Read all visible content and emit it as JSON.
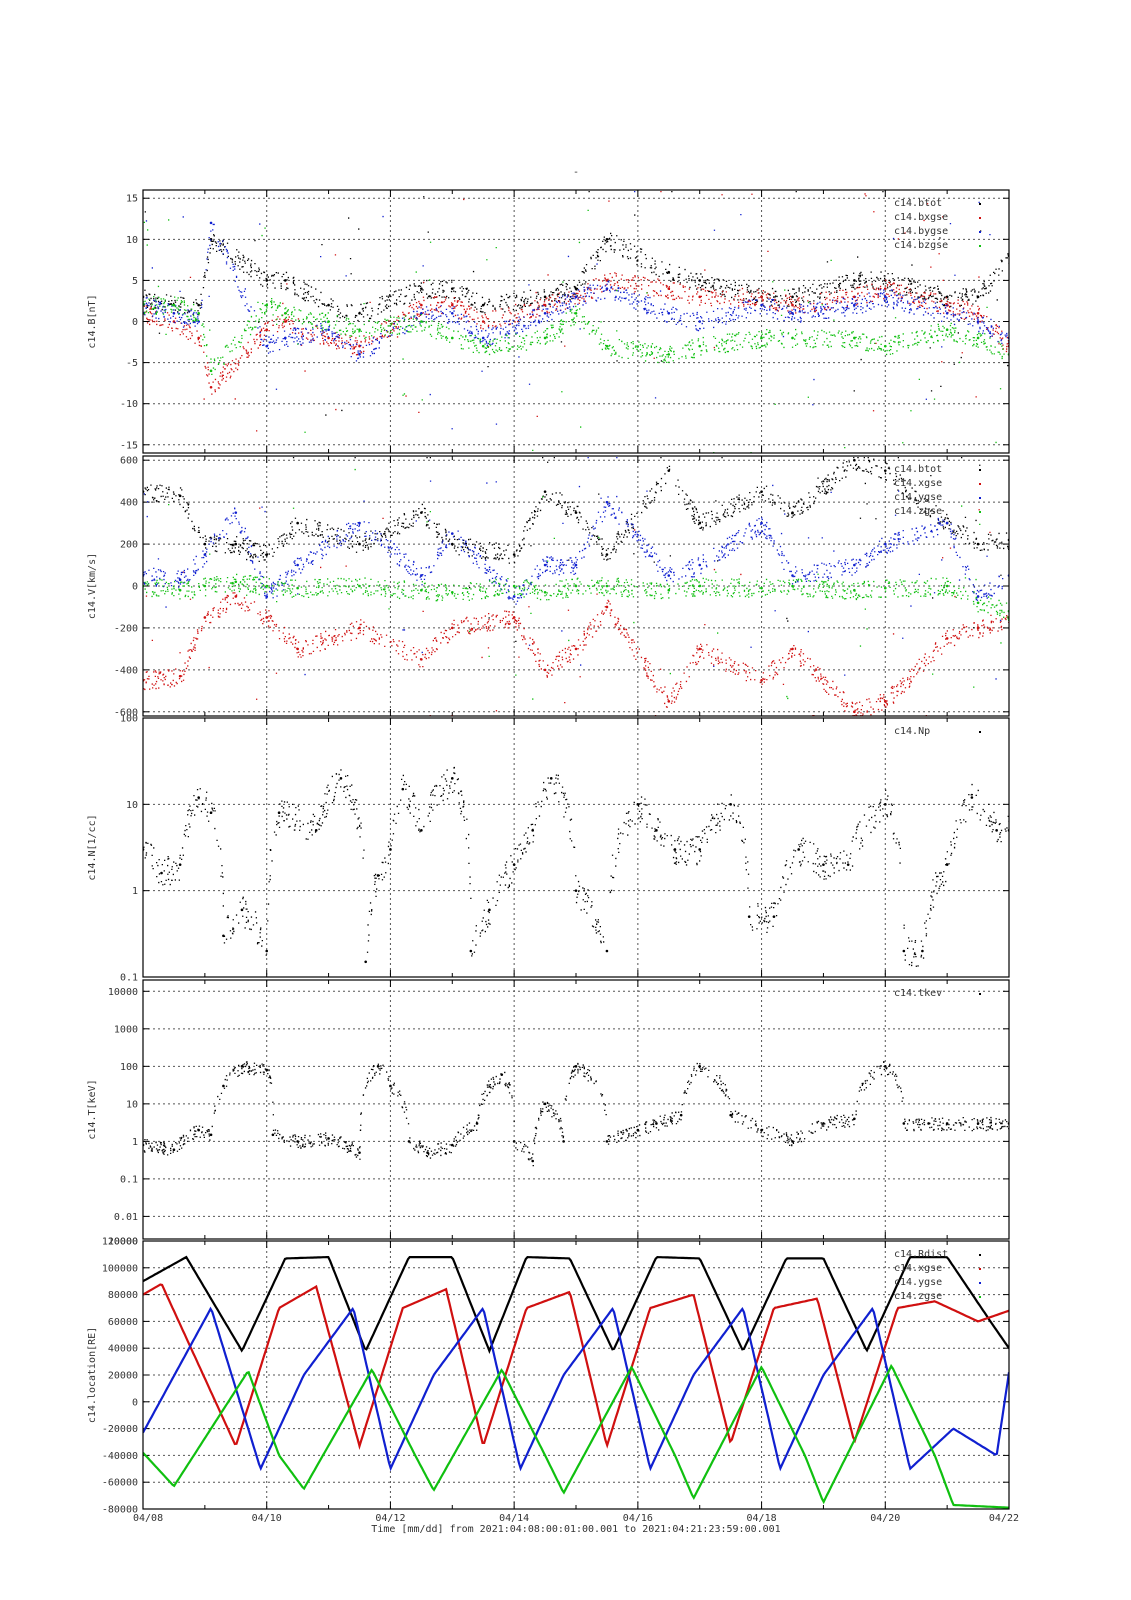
{
  "figure": {
    "title_mark": "-",
    "xaxis": {
      "ticks": [
        "04/08",
        "04/10",
        "04/12",
        "04/14",
        "04/16",
        "04/18",
        "04/20",
        "04/22"
      ],
      "label": "Time [mm/dd]  from 2021:04:08:00:01:00.001  to  2021:04:21:23:59:00.001",
      "range_days": [
        0,
        14
      ]
    }
  },
  "colors": {
    "black": "#000000",
    "red": "#d01010",
    "blue": "#1020d0",
    "green": "#10c010",
    "grid": "#555555"
  },
  "chart_data": [
    {
      "type": "scatter",
      "ylabel": "c14.B[nT]",
      "ylim": [
        -16,
        16
      ],
      "log": false,
      "yticks": [
        15,
        10,
        5,
        0,
        -5,
        -10,
        -15
      ],
      "yticklabels": [
        "15",
        "10",
        "5",
        "0",
        "-5",
        "-10",
        "-15"
      ],
      "series": [
        {
          "name": "c14.btot",
          "color": "black",
          "x": [
            0,
            0.5,
            0.9,
            1.1,
            2.0,
            2.3,
            3.0,
            3.5,
            4.5,
            5.0,
            5.5,
            6.5,
            7.0,
            7.5,
            8.5,
            9.0,
            10.0,
            10.5,
            11.5,
            12.0,
            13.0,
            13.5,
            14.0
          ],
          "y": [
            3,
            2,
            2,
            10,
            5,
            5,
            2,
            1,
            4,
            4,
            2,
            3,
            4,
            10,
            6,
            5,
            3,
            3,
            5,
            5,
            3,
            3,
            8
          ]
        },
        {
          "name": "c14.bxgse",
          "color": "red",
          "x": [
            0,
            0.5,
            0.9,
            1.1,
            2.0,
            2.3,
            3.0,
            3.5,
            4.5,
            5.0,
            5.5,
            6.5,
            7.0,
            7.5,
            8.5,
            9.0,
            10.0,
            10.5,
            11.5,
            12.0,
            13.0,
            13.5,
            14.0
          ],
          "y": [
            1,
            0,
            -2,
            -8,
            -1,
            0,
            -2,
            -3,
            2,
            2,
            0,
            2,
            3,
            5,
            4,
            3,
            3,
            2,
            3,
            4,
            2,
            1,
            -3
          ]
        },
        {
          "name": "c14.bygse",
          "color": "blue",
          "x": [
            0,
            0.5,
            0.9,
            1.1,
            2.0,
            2.3,
            3.0,
            3.5,
            4.5,
            5.0,
            5.5,
            6.5,
            7.0,
            7.5,
            8.5,
            9.0,
            10.0,
            10.5,
            11.5,
            12.0,
            13.0,
            13.5,
            14.0
          ],
          "y": [
            2,
            1,
            0,
            12,
            -3,
            -2,
            -1,
            -4,
            1,
            1,
            -2,
            1,
            3,
            4,
            1,
            0,
            2,
            1,
            2,
            3,
            1,
            0,
            -2
          ]
        },
        {
          "name": "c14.bzgse",
          "color": "green",
          "x": [
            0,
            0.5,
            0.9,
            1.1,
            2.0,
            2.3,
            3.0,
            3.5,
            4.5,
            5.0,
            5.5,
            6.5,
            7.0,
            7.5,
            8.5,
            9.0,
            10.0,
            10.5,
            11.5,
            12.0,
            13.0,
            13.5,
            14.0
          ],
          "y": [
            2,
            2,
            1,
            -6,
            2,
            1,
            0,
            -1,
            0,
            -2,
            -3,
            -2,
            1,
            -3,
            -4,
            -3,
            -2,
            -2,
            -2,
            -3,
            -1,
            -2,
            -4
          ]
        }
      ]
    },
    {
      "type": "scatter",
      "ylabel": "c14.V[km/s]",
      "ylim": [
        -620,
        620
      ],
      "log": false,
      "yticks": [
        600,
        400,
        200,
        0,
        -200,
        -400,
        -600
      ],
      "yticklabels": [
        "600",
        "400",
        "200",
        "0",
        "-200",
        "-400",
        "-600"
      ],
      "series": [
        {
          "name": "c14.btot",
          "color": "black",
          "x": [
            0,
            0.6,
            1.0,
            1.5,
            2.0,
            2.5,
            3.5,
            4.5,
            5.0,
            6.0,
            6.5,
            7.0,
            7.5,
            8.5,
            9.0,
            10.0,
            10.5,
            11.5,
            12.0,
            13.0,
            13.5,
            14.0
          ],
          "y": [
            450,
            430,
            200,
            200,
            150,
            300,
            200,
            350,
            200,
            150,
            450,
            350,
            150,
            550,
            300,
            450,
            350,
            600,
            550,
            300,
            200,
            220
          ]
        },
        {
          "name": "c14.xgse",
          "color": "red",
          "x": [
            0,
            0.6,
            1.0,
            1.5,
            2.0,
            2.5,
            3.5,
            4.5,
            5.0,
            6.0,
            6.5,
            7.0,
            7.5,
            8.5,
            9.0,
            10.0,
            10.5,
            11.5,
            12.0,
            13.0,
            13.5,
            14.0
          ],
          "y": [
            -450,
            -430,
            -150,
            -50,
            -150,
            -300,
            -200,
            -350,
            -200,
            -150,
            -400,
            -300,
            -100,
            -550,
            -300,
            -450,
            -300,
            -600,
            -550,
            -250,
            -200,
            -150
          ]
        },
        {
          "name": "c14.ygse",
          "color": "blue",
          "x": [
            0,
            0.6,
            1.0,
            1.5,
            2.0,
            2.5,
            3.5,
            4.5,
            5.0,
            6.0,
            6.5,
            7.0,
            7.5,
            8.5,
            9.0,
            10.0,
            10.5,
            11.5,
            12.0,
            13.0,
            13.5,
            14.0
          ],
          "y": [
            50,
            30,
            150,
            350,
            -50,
            100,
            300,
            50,
            250,
            -50,
            100,
            100,
            400,
            50,
            100,
            300,
            50,
            100,
            200,
            300,
            -50,
            50
          ]
        },
        {
          "name": "c14.zgse",
          "color": "green",
          "x": [
            0,
            0.6,
            1.0,
            1.5,
            2.0,
            2.5,
            3.5,
            4.5,
            5.0,
            6.0,
            6.5,
            7.0,
            7.5,
            8.5,
            9.0,
            10.0,
            10.5,
            11.5,
            12.0,
            13.0,
            13.5,
            14.0
          ],
          "y": [
            0,
            -20,
            0,
            20,
            0,
            -10,
            0,
            -20,
            -30,
            0,
            -30,
            0,
            0,
            -20,
            0,
            -10,
            0,
            -20,
            -10,
            0,
            -80,
            -120
          ]
        }
      ]
    },
    {
      "type": "scatter",
      "ylabel": "c14.N[1/cc]",
      "ylim": [
        0.1,
        100
      ],
      "log": true,
      "yticks": [
        100,
        10,
        1,
        0.1
      ],
      "yticklabels": [
        "100",
        "10",
        "1",
        "0.1"
      ],
      "series": [
        {
          "name": "c14.Np",
          "color": "black",
          "x": [
            0,
            0.3,
            0.6,
            0.9,
            1.1,
            1.3,
            1.6,
            2.0,
            2.2,
            2.8,
            3.2,
            3.6,
            3.8,
            4.0,
            4.2,
            4.5,
            5.0,
            5.3,
            5.6,
            6.0,
            6.3,
            6.6,
            7.0,
            7.5,
            8.0,
            8.3,
            8.6,
            9.0,
            9.5,
            9.8,
            10.2,
            10.6,
            11.0,
            11.4,
            12.0,
            12.3,
            12.6,
            13.0,
            13.4,
            13.8,
            14.0
          ],
          "y": [
            3,
            1.6,
            2,
            12,
            8,
            0.3,
            0.6,
            0.2,
            8,
            5,
            20,
            0.15,
            1.5,
            3,
            15,
            5,
            20,
            0.2,
            0.6,
            2,
            5,
            20,
            1,
            0.2,
            10,
            5,
            3,
            3,
            10,
            0.5,
            0.5,
            3,
            2,
            2,
            10,
            0.2,
            0.2,
            2,
            12,
            5,
            5
          ]
        }
      ]
    },
    {
      "type": "scatter",
      "ylabel": "c14.T[keV]",
      "ylim": [
        0.0025,
        20000
      ],
      "log": true,
      "yticks": [
        10000,
        1000,
        100,
        10,
        1,
        0.1,
        0.01
      ],
      "yticklabels": [
        "10000",
        "1000",
        "100",
        "10",
        "1",
        "0.1",
        "0.01"
      ],
      "series": [
        {
          "name": "c14.tkev",
          "color": "black",
          "x": [
            0,
            0.5,
            0.9,
            1.1,
            1.3,
            1.6,
            2.0,
            2.1,
            2.5,
            3.0,
            3.5,
            3.8,
            4.0,
            4.3,
            4.6,
            5.0,
            5.4,
            5.8,
            6.0,
            6.3,
            6.5,
            6.8,
            7.0,
            7.5,
            8.0,
            8.3,
            8.7,
            9.0,
            9.5,
            10.0,
            10.5,
            11.0,
            11.5,
            12.0,
            12.3,
            12.7,
            13.0,
            13.5,
            14.0
          ],
          "y": [
            0.8,
            0.6,
            2,
            1.5,
            30,
            100,
            80,
            1.5,
            1,
            1.2,
            0.5,
            100,
            30,
            1,
            0.5,
            0.8,
            3,
            60,
            1,
            0.3,
            10,
            1,
            100,
            1,
            2,
            3,
            5,
            100,
            5,
            2,
            1,
            3,
            4,
            100,
            3,
            3,
            3,
            3,
            3
          ]
        }
      ]
    },
    {
      "type": "line",
      "ylabel": "c14.location[RE]",
      "ylim": [
        -80000,
        120000
      ],
      "log": false,
      "top_labels": [
        "120000",
        "10000"
      ],
      "yticks": [
        100000,
        80000,
        60000,
        40000,
        20000,
        0,
        -20000,
        -40000,
        -60000,
        -80000
      ],
      "yticklabels": [
        "100000",
        "80000",
        "60000",
        "40000",
        "20000",
        "0",
        "-20000",
        "-40000",
        "-60000",
        "-80000"
      ],
      "series": [
        {
          "name": "c14.Rdist",
          "color": "black",
          "x": [
            0,
            0.7,
            1.6,
            2.3,
            3.0,
            3.6,
            4.3,
            5.0,
            5.6,
            6.2,
            6.9,
            7.6,
            8.3,
            9.0,
            9.7,
            10.4,
            11.0,
            11.7,
            12.4,
            13.0,
            13.7,
            14.0
          ],
          "y": [
            90000,
            108000,
            38000,
            107000,
            108000,
            38000,
            108000,
            108000,
            38000,
            108000,
            107000,
            38000,
            108000,
            107000,
            38000,
            107000,
            107000,
            38000,
            108000,
            108000,
            60000,
            40000
          ]
        },
        {
          "name": "c14.xgse",
          "color": "red",
          "x": [
            0,
            0.3,
            1.5,
            2.2,
            2.8,
            3.5,
            4.2,
            4.9,
            5.5,
            6.2,
            6.9,
            7.5,
            8.2,
            8.9,
            9.5,
            10.2,
            10.9,
            11.5,
            12.2,
            12.8,
            13.5,
            14.0
          ],
          "y": [
            80000,
            88000,
            -33000,
            70000,
            86000,
            -33000,
            70000,
            84000,
            -33000,
            70000,
            82000,
            -33000,
            70000,
            80000,
            -31000,
            70000,
            77000,
            -30000,
            70000,
            75000,
            60000,
            68000
          ]
        },
        {
          "name": "c14.ygse",
          "color": "blue",
          "x": [
            0,
            1.1,
            1.9,
            2.6,
            3.4,
            4.0,
            4.7,
            5.5,
            6.1,
            6.8,
            7.6,
            8.2,
            8.9,
            9.7,
            10.3,
            11.0,
            11.8,
            12.4,
            13.1,
            13.8,
            14.0
          ],
          "y": [
            -23000,
            70000,
            -50000,
            20000,
            70000,
            -50000,
            20000,
            70000,
            -50000,
            20000,
            70000,
            -50000,
            20000,
            70000,
            -50000,
            20000,
            70000,
            -50000,
            -20000,
            -40000,
            22000
          ]
        },
        {
          "name": "c14.zgse",
          "color": "green",
          "x": [
            0,
            0.5,
            1.7,
            2.2,
            2.6,
            3.7,
            4.4,
            4.7,
            5.8,
            6.5,
            6.8,
            7.9,
            8.6,
            8.9,
            10.0,
            10.7,
            11.0,
            12.1,
            12.8,
            13.1,
            14.0
          ],
          "y": [
            -38000,
            -63000,
            23000,
            -40000,
            -65000,
            24000,
            -40000,
            -66000,
            24000,
            -40000,
            -68000,
            26000,
            -40000,
            -72000,
            26000,
            -40000,
            -75000,
            27000,
            -40000,
            -77000,
            -79000
          ]
        }
      ]
    }
  ]
}
